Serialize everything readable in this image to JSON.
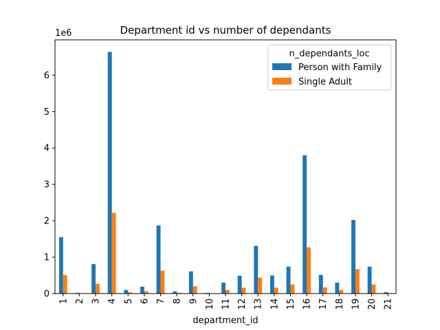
{
  "chart_data": {
    "type": "bar",
    "title": "Department id vs number of dependants",
    "xlabel": "department_id",
    "ylabel": "",
    "y_offset_label": "1e6",
    "y_scale": 1000000,
    "ylim": [
      0,
      6970000
    ],
    "yticks": [
      0,
      1,
      2,
      3,
      4,
      5,
      6
    ],
    "grid": false,
    "legend": {
      "title": "n_dependants_loc",
      "placement": "top-right"
    },
    "colors": [
      "#1f77b4",
      "#ff7f0e"
    ],
    "categories": [
      "1",
      "2",
      "3",
      "4",
      "5",
      "6",
      "7",
      "8",
      "9",
      "10",
      "11",
      "12",
      "13",
      "14",
      "15",
      "16",
      "17",
      "18",
      "19",
      "20",
      "21"
    ],
    "series": [
      {
        "name": "Person with Family",
        "values": [
          1550000,
          20000,
          810000,
          6640000,
          100000,
          190000,
          1870000,
          60000,
          610000,
          20000,
          300000,
          490000,
          1310000,
          500000,
          740000,
          3800000,
          510000,
          300000,
          2020000,
          740000,
          40000
        ]
      },
      {
        "name": "Single Adult",
        "values": [
          510000,
          7000,
          270000,
          2220000,
          35000,
          65000,
          630000,
          20000,
          200000,
          7000,
          100000,
          160000,
          440000,
          160000,
          250000,
          1270000,
          170000,
          100000,
          670000,
          250000,
          13000
        ]
      }
    ]
  }
}
